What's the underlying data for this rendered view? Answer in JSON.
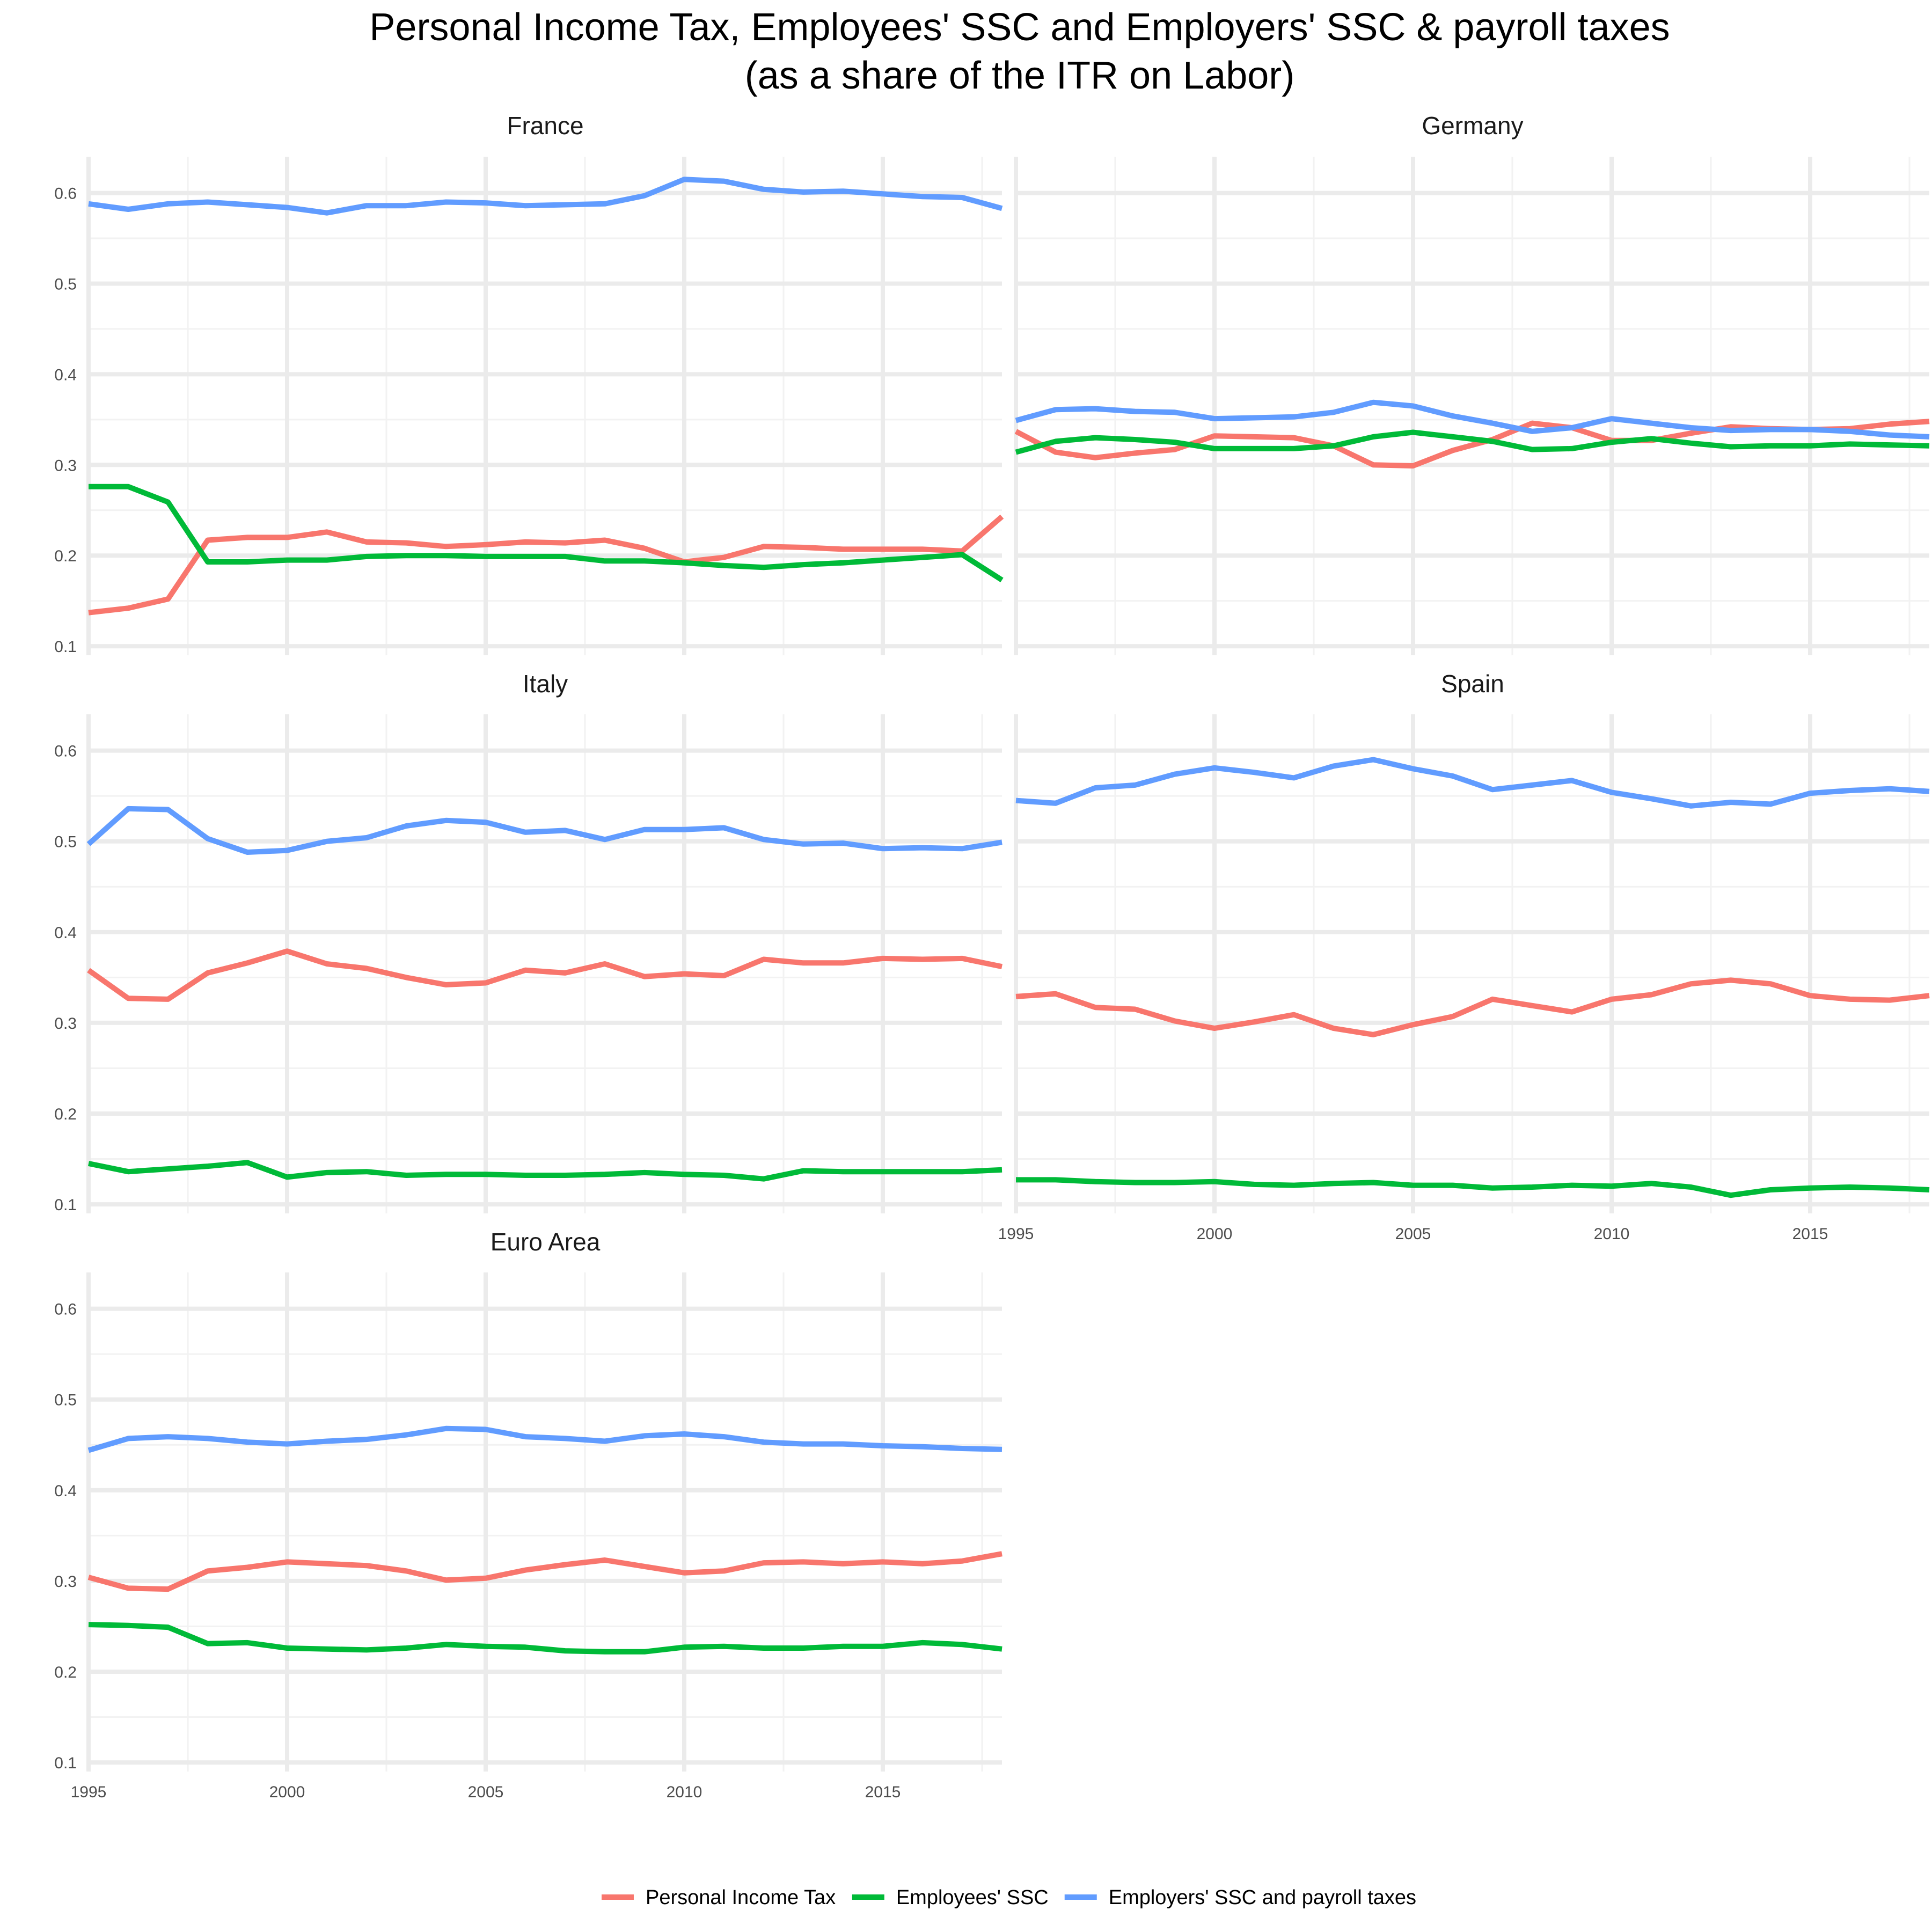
{
  "title_line1": "Personal Income Tax, Employees' SSC and Employers' SSC & payroll taxes",
  "title_line2": "(as a share of the ITR on Labor)",
  "colors": {
    "personal_income_tax": "#F8766D",
    "employees_ssc": "#00BA38",
    "employers_ssc": "#619CFF"
  },
  "legend": [
    {
      "key": "personal_income_tax",
      "label": "Personal Income Tax"
    },
    {
      "key": "employees_ssc",
      "label": "Employees' SSC"
    },
    {
      "key": "employers_ssc",
      "label": "Employers' SSC and payroll taxes"
    }
  ],
  "chart_data": {
    "type": "line",
    "layout": "facet-grid-2-columns",
    "legend_position": "bottom",
    "grid": true,
    "x": [
      1995,
      1996,
      1997,
      1998,
      1999,
      2000,
      2001,
      2002,
      2003,
      2004,
      2005,
      2006,
      2007,
      2008,
      2009,
      2010,
      2011,
      2012,
      2013,
      2014,
      2015,
      2016,
      2017,
      2018
    ],
    "xlim": [
      1995,
      2018
    ],
    "ylim": [
      0.09,
      0.64
    ],
    "x_ticks": [
      "1995",
      "2000",
      "2005",
      "2010",
      "2015"
    ],
    "y_ticks": [
      "0.1",
      "0.2",
      "0.3",
      "0.4",
      "0.5",
      "0.6"
    ],
    "panels": [
      {
        "name": "France",
        "series": [
          {
            "key": "personal_income_tax",
            "values": [
              0.137,
              0.142,
              0.152,
              0.217,
              0.22,
              0.22,
              0.226,
              0.215,
              0.214,
              0.21,
              0.212,
              0.215,
              0.214,
              0.217,
              0.208,
              0.193,
              0.198,
              0.21,
              0.209,
              0.207,
              0.207,
              0.207,
              0.205,
              0.243
            ]
          },
          {
            "key": "employees_ssc",
            "values": [
              0.276,
              0.276,
              0.259,
              0.193,
              0.193,
              0.195,
              0.195,
              0.199,
              0.2,
              0.2,
              0.199,
              0.199,
              0.199,
              0.194,
              0.194,
              0.192,
              0.189,
              0.187,
              0.19,
              0.192,
              0.195,
              0.198,
              0.201,
              0.173
            ]
          },
          {
            "key": "employers_ssc",
            "values": [
              0.588,
              0.582,
              0.588,
              0.59,
              0.587,
              0.584,
              0.578,
              0.586,
              0.586,
              0.59,
              0.589,
              0.586,
              0.587,
              0.588,
              0.597,
              0.615,
              0.613,
              0.604,
              0.601,
              0.602,
              0.599,
              0.596,
              0.595,
              0.583
            ]
          }
        ]
      },
      {
        "name": "Germany",
        "series": [
          {
            "key": "personal_income_tax",
            "values": [
              0.337,
              0.314,
              0.308,
              0.313,
              0.317,
              0.332,
              0.331,
              0.33,
              0.321,
              0.3,
              0.299,
              0.316,
              0.328,
              0.346,
              0.341,
              0.327,
              0.327,
              0.335,
              0.342,
              0.34,
              0.339,
              0.34,
              0.345,
              0.348
            ]
          },
          {
            "key": "employees_ssc",
            "values": [
              0.314,
              0.326,
              0.33,
              0.328,
              0.325,
              0.318,
              0.318,
              0.318,
              0.321,
              0.331,
              0.336,
              0.331,
              0.326,
              0.317,
              0.318,
              0.325,
              0.329,
              0.324,
              0.32,
              0.321,
              0.321,
              0.323,
              0.322,
              0.321
            ]
          },
          {
            "key": "employers_ssc",
            "values": [
              0.349,
              0.361,
              0.362,
              0.359,
              0.358,
              0.351,
              0.352,
              0.353,
              0.358,
              0.369,
              0.365,
              0.354,
              0.346,
              0.337,
              0.341,
              0.351,
              0.346,
              0.341,
              0.338,
              0.339,
              0.339,
              0.337,
              0.333,
              0.331
            ]
          }
        ]
      },
      {
        "name": "Italy",
        "series": [
          {
            "key": "personal_income_tax",
            "values": [
              0.358,
              0.327,
              0.326,
              0.355,
              0.366,
              0.379,
              0.365,
              0.36,
              0.35,
              0.342,
              0.344,
              0.358,
              0.355,
              0.365,
              0.351,
              0.354,
              0.352,
              0.37,
              0.366,
              0.366,
              0.371,
              0.37,
              0.371,
              0.362
            ]
          },
          {
            "key": "employees_ssc",
            "values": [
              0.145,
              0.136,
              0.139,
              0.142,
              0.146,
              0.13,
              0.135,
              0.136,
              0.132,
              0.133,
              0.133,
              0.132,
              0.132,
              0.133,
              0.135,
              0.133,
              0.132,
              0.128,
              0.137,
              0.136,
              0.136,
              0.136,
              0.136,
              0.138
            ]
          },
          {
            "key": "employers_ssc",
            "values": [
              0.497,
              0.536,
              0.535,
              0.503,
              0.488,
              0.49,
              0.5,
              0.504,
              0.517,
              0.523,
              0.521,
              0.51,
              0.512,
              0.502,
              0.513,
              0.513,
              0.515,
              0.502,
              0.497,
              0.498,
              0.492,
              0.493,
              0.492,
              0.499
            ]
          }
        ]
      },
      {
        "name": "Spain",
        "series": [
          {
            "key": "personal_income_tax",
            "values": [
              0.329,
              0.332,
              0.317,
              0.315,
              0.302,
              0.294,
              0.301,
              0.309,
              0.294,
              0.287,
              0.298,
              0.307,
              0.326,
              0.319,
              0.312,
              0.326,
              0.331,
              0.343,
              0.347,
              0.343,
              0.33,
              0.326,
              0.325,
              0.33
            ]
          },
          {
            "key": "employees_ssc",
            "values": [
              0.127,
              0.127,
              0.125,
              0.124,
              0.124,
              0.125,
              0.122,
              0.121,
              0.123,
              0.124,
              0.121,
              0.121,
              0.118,
              0.119,
              0.121,
              0.12,
              0.123,
              0.119,
              0.11,
              0.116,
              0.118,
              0.119,
              0.118,
              0.116
            ]
          },
          {
            "key": "employers_ssc",
            "values": [
              0.545,
              0.542,
              0.559,
              0.562,
              0.574,
              0.581,
              0.576,
              0.57,
              0.583,
              0.59,
              0.58,
              0.572,
              0.557,
              0.562,
              0.567,
              0.554,
              0.547,
              0.539,
              0.543,
              0.541,
              0.553,
              0.556,
              0.558,
              0.555
            ]
          }
        ]
      },
      {
        "name": "Euro Area",
        "series": [
          {
            "key": "personal_income_tax",
            "values": [
              0.304,
              0.292,
              0.291,
              0.311,
              0.315,
              0.321,
              0.319,
              0.317,
              0.311,
              0.301,
              0.303,
              0.312,
              0.318,
              0.323,
              0.316,
              0.309,
              0.311,
              0.32,
              0.321,
              0.319,
              0.321,
              0.319,
              0.322,
              0.33
            ]
          },
          {
            "key": "employees_ssc",
            "values": [
              0.252,
              0.251,
              0.249,
              0.231,
              0.232,
              0.226,
              0.225,
              0.224,
              0.226,
              0.23,
              0.228,
              0.227,
              0.223,
              0.222,
              0.222,
              0.227,
              0.228,
              0.226,
              0.226,
              0.228,
              0.228,
              0.232,
              0.23,
              0.225
            ]
          },
          {
            "key": "employers_ssc",
            "values": [
              0.444,
              0.457,
              0.459,
              0.457,
              0.453,
              0.451,
              0.454,
              0.456,
              0.461,
              0.468,
              0.467,
              0.459,
              0.457,
              0.454,
              0.46,
              0.462,
              0.459,
              0.453,
              0.451,
              0.451,
              0.449,
              0.448,
              0.446,
              0.445
            ]
          }
        ]
      }
    ]
  }
}
